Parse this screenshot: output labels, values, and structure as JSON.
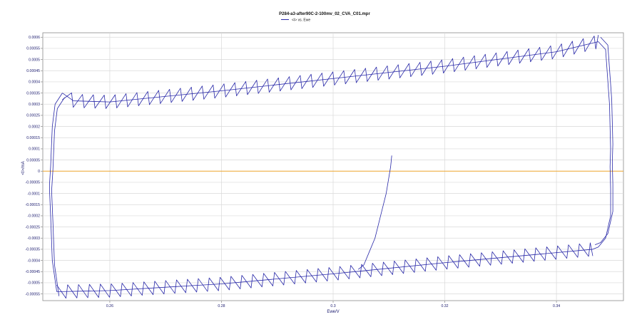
{
  "chart_data": {
    "type": "line",
    "title": "P284-a3-after90C-2-100mv_02_CVA_C01.mpr",
    "xlabel": "Ewe/V",
    "ylabel": "<I>/mA",
    "xlim": [
      0.248,
      0.352
    ],
    "ylim": [
      -0.00058,
      0.00062
    ],
    "grid": true,
    "legend": "top-left under title",
    "x_ticks": [
      "0.26",
      "0.28",
      "0.3",
      "0.32",
      "0.34"
    ],
    "x_tick_values": [
      0.26,
      0.28,
      0.3,
      0.32,
      0.34
    ],
    "y_ticks": [
      "0.0006",
      "0.00055",
      "0.0005",
      "0.00045",
      "0.0004",
      "0.00035",
      "0.0003",
      "0.00025",
      "0.0002",
      "0.00015",
      "0.0001",
      "0.00005",
      "0",
      "-0.00005",
      "-0.0001",
      "-0.00015",
      "-0.0002",
      "-0.00025",
      "-0.0003",
      "-0.00035",
      "-0.0004",
      "-0.00045",
      "-0.0005",
      "-0.00055"
    ],
    "y_tick_values": [
      0.0006,
      0.00055,
      0.0005,
      0.00045,
      0.0004,
      0.00035,
      0.0003,
      0.00025,
      0.0002,
      0.00015,
      0.0001,
      5e-05,
      0,
      -5e-05,
      -0.0001,
      -0.00015,
      -0.0002,
      -0.00025,
      -0.0003,
      -0.00035,
      -0.0004,
      -0.00045,
      -0.0005,
      -0.00055
    ],
    "zero_line_color": "#f0a830",
    "series": [
      {
        "name": "<I> vs. Ewe",
        "color": "#2828a8",
        "sawtooth_amplitude": 3e-05,
        "sawtooth_period": 0.00195,
        "anodic_baseline": [
          [
            0.2515,
            0.00035
          ],
          [
            0.2535,
            0.000315
          ],
          [
            0.26,
            0.00031
          ],
          [
            0.28,
            0.00036
          ],
          [
            0.3,
            0.000415
          ],
          [
            0.32,
            0.00047
          ],
          [
            0.34,
            0.000535
          ],
          [
            0.3475,
            0.00058
          ]
        ],
        "cathodic_baseline": [
          [
            0.2505,
            -0.00054
          ],
          [
            0.26,
            -0.000535
          ],
          [
            0.28,
            -0.000505
          ],
          [
            0.3,
            -0.00046
          ],
          [
            0.32,
            -0.00041
          ],
          [
            0.34,
            -0.000365
          ],
          [
            0.3465,
            -0.00035
          ]
        ],
        "right_edge": [
          [
            0.3475,
            0.00058
          ],
          [
            0.3488,
            0.000545
          ],
          [
            0.3495,
            0.0003
          ],
          [
            0.3497,
            0.0001
          ],
          [
            0.3496,
            2e-05
          ],
          [
            0.3497,
            -8e-05
          ],
          [
            0.3497,
            -0.0002
          ],
          [
            0.3488,
            -0.0003
          ],
          [
            0.3475,
            -0.00034
          ],
          [
            0.3465,
            -0.00035
          ]
        ],
        "left_edge": [
          [
            0.2505,
            -0.00054
          ],
          [
            0.2497,
            -0.0004
          ],
          [
            0.2494,
            -0.0002
          ],
          [
            0.2492,
            -8e-05
          ],
          [
            0.2492,
            -6e-05
          ],
          [
            0.2494,
            2e-05
          ],
          [
            0.2497,
            0.0002
          ],
          [
            0.2502,
            0.0003
          ],
          [
            0.2515,
            0.00035
          ]
        ],
        "initial_segment": [
          [
            0.3105,
            7e-05
          ],
          [
            0.3103,
            2e-05
          ],
          [
            0.3095,
            -0.0001
          ],
          [
            0.3085,
            -0.0002
          ],
          [
            0.3075,
            -0.0003
          ],
          [
            0.3065,
            -0.00036
          ],
          [
            0.3055,
            -0.00042
          ],
          [
            0.3045,
            -0.00044
          ]
        ]
      }
    ]
  }
}
